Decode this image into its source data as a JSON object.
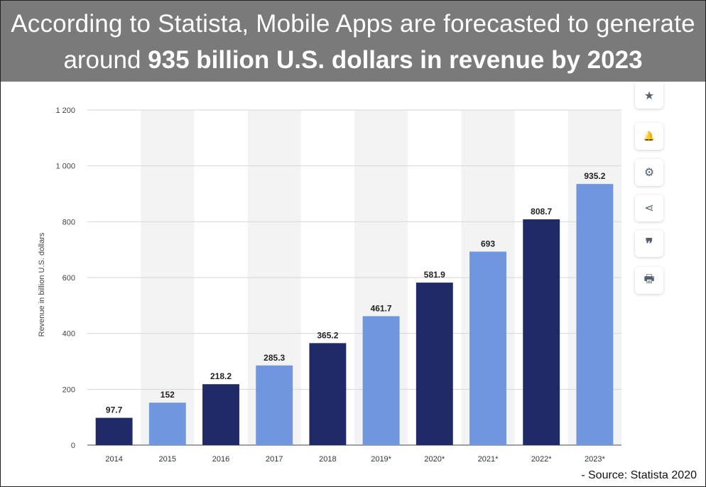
{
  "header": {
    "line1": "According to Statista, Mobile Apps are forecasted to generate",
    "line2_prefix": "around",
    "line2_bold": "935 billion U.S. dollars in revenue by 2023"
  },
  "toolbar": [
    {
      "name": "favorite-icon",
      "glyph": "★"
    },
    {
      "name": "notification-bell-icon",
      "glyph": "🔔"
    },
    {
      "name": "settings-gear-icon",
      "glyph": "⚙"
    },
    {
      "name": "share-icon",
      "glyph": "⋖"
    },
    {
      "name": "quote-icon",
      "glyph": "❞"
    },
    {
      "name": "print-icon",
      "glyph": "🖶"
    }
  ],
  "source": "- Source: Statista 2020",
  "chart_data": {
    "type": "bar",
    "title": "",
    "xlabel": "",
    "ylabel": "Revenue in billion U.S. dollars",
    "ylim": [
      0,
      1200
    ],
    "yticks": [
      0,
      200,
      400,
      600,
      800,
      1000,
      1200
    ],
    "ytick_labels": [
      "0",
      "200",
      "400",
      "600",
      "800",
      "1 000",
      "1 200"
    ],
    "categories": [
      "2014",
      "2015",
      "2016",
      "2017",
      "2018",
      "2019*",
      "2020*",
      "2021*",
      "2022*",
      "2023*"
    ],
    "values": [
      97.7,
      152,
      218.2,
      285.3,
      365.2,
      461.7,
      581.9,
      693,
      808.7,
      935.2
    ],
    "value_labels": [
      "97.7",
      "152",
      "218.2",
      "285.3",
      "365.2",
      "461.7",
      "581.9",
      "693",
      "808.7",
      "935.2"
    ],
    "bar_colors": [
      "#1f2a66",
      "#6f96df",
      "#1f2a66",
      "#6f96df",
      "#1f2a66",
      "#6f96df",
      "#1f2a66",
      "#6f96df",
      "#1f2a66",
      "#6f96df"
    ],
    "grid": true
  }
}
